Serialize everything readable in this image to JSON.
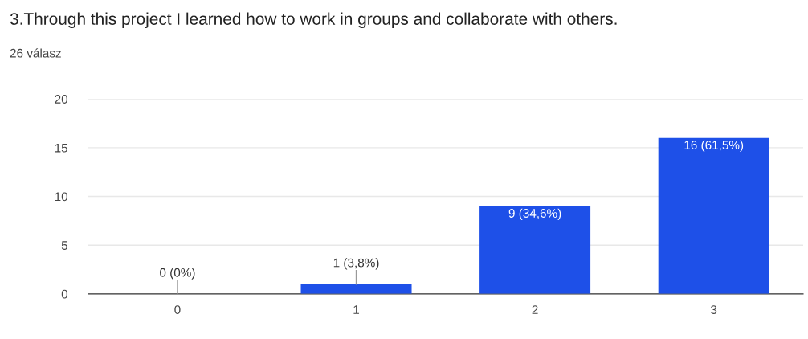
{
  "chart_data": {
    "type": "bar",
    "title": "3.Through this project I learned how to work in groups and collaborate with others.",
    "subtitle": "26 válasz",
    "categories": [
      "0",
      "1",
      "2",
      "3"
    ],
    "values": [
      0,
      1,
      9,
      16
    ],
    "value_labels": [
      "0 (0%)",
      "1 (3,8%)",
      "9 (34,6%)",
      "16 (61,5%)"
    ],
    "color": "#1e50e8",
    "ylim": [
      0,
      20
    ],
    "yticks": [
      0,
      5,
      10,
      15,
      20
    ],
    "grid": "y"
  }
}
